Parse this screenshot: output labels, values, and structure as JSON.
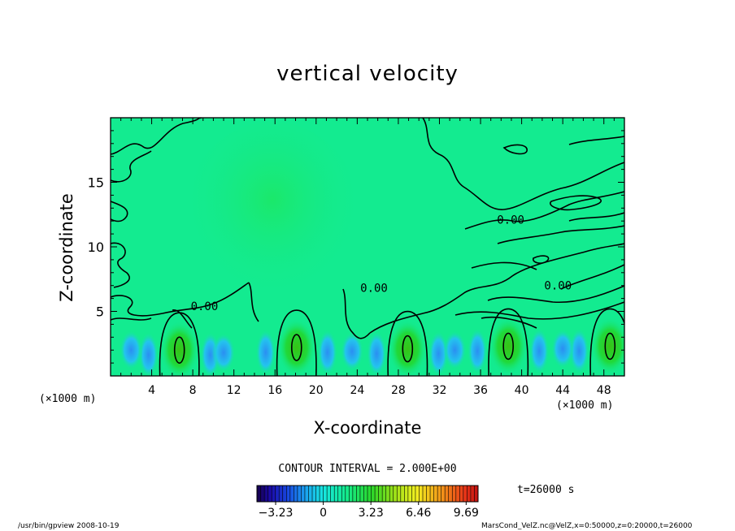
{
  "chart_data": {
    "type": "heatmap",
    "title": "vertical velocity",
    "xlabel": "X-coordinate",
    "ylabel": "Z-coordinate",
    "x_unit": "(×1000 m)",
    "x_unit_right": "(×1000 m)",
    "xlim": [
      0,
      50
    ],
    "ylim": [
      0,
      20
    ],
    "x_ticks": [
      4,
      8,
      12,
      16,
      20,
      24,
      28,
      32,
      36,
      40,
      44,
      48
    ],
    "y_ticks": [
      5,
      10,
      15
    ],
    "contour_interval_text": "CONTOUR INTERVAL = 2.000E+00",
    "contour_labels": [
      {
        "text": "0.00",
        "x": 7.8,
        "z": 5.1
      },
      {
        "text": "0.00",
        "x": 24.3,
        "z": 6.5
      },
      {
        "text": "0.00",
        "x": 37.6,
        "z": 11.8
      },
      {
        "text": "0.00",
        "x": 42.2,
        "z": 6.7
      }
    ],
    "updraft_cores": [
      {
        "x": 6.7,
        "z": 2.0
      },
      {
        "x": 18.1,
        "z": 2.2
      },
      {
        "x": 28.9,
        "z": 2.1
      },
      {
        "x": 38.7,
        "z": 2.3
      },
      {
        "x": 48.6,
        "z": 2.3
      }
    ],
    "colorbar": {
      "min": -4.5,
      "max": 10.5,
      "tick_values": [
        -3.23,
        0,
        3.23,
        6.46,
        9.69
      ],
      "tick_labels": [
        "−3.23",
        "0",
        "3.23",
        "6.46",
        "9.69"
      ]
    },
    "time_label": "t=26000 s"
  },
  "footer": {
    "left": "/usr/bin/gpview  2008-10-19",
    "right": "MarsCond_VelZ.nc@VelZ,x=0:50000,z=0:20000,t=26000"
  }
}
